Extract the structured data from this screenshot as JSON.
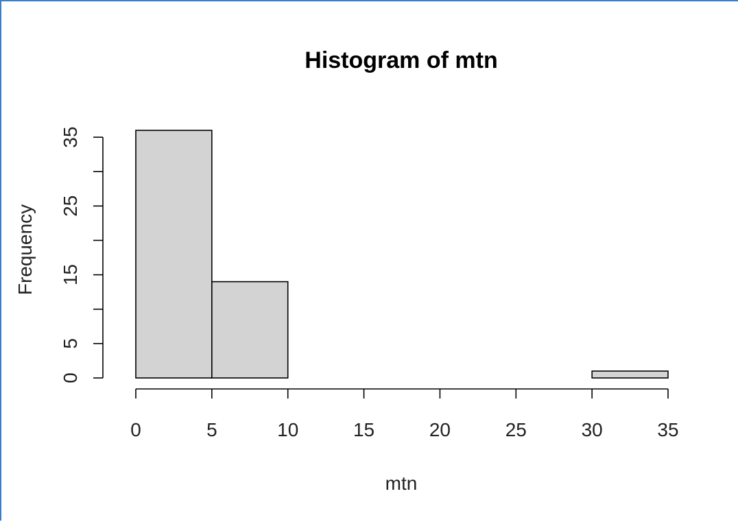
{
  "chart_data": {
    "type": "bar",
    "title": "Histogram of mtn",
    "xlabel": "mtn",
    "ylabel": "Frequency",
    "bins": [
      {
        "x0": 0,
        "x1": 5,
        "count": 36
      },
      {
        "x0": 5,
        "x1": 10,
        "count": 14
      },
      {
        "x0": 10,
        "x1": 15,
        "count": 0
      },
      {
        "x0": 15,
        "x1": 20,
        "count": 0
      },
      {
        "x0": 20,
        "x1": 25,
        "count": 0
      },
      {
        "x0": 25,
        "x1": 30,
        "count": 0
      },
      {
        "x0": 30,
        "x1": 35,
        "count": 1
      }
    ],
    "xlim": [
      0,
      35
    ],
    "ylim": [
      0,
      36
    ],
    "xticks": [
      0,
      5,
      10,
      15,
      20,
      25,
      30,
      35
    ],
    "yticks_labeled": [
      0,
      5,
      15,
      25,
      35
    ],
    "yticks": [
      0,
      5,
      10,
      15,
      20,
      25,
      30,
      35
    ],
    "bar_fill": "#d3d3d3",
    "bar_stroke": "#000000",
    "grid": false,
    "legend": "none"
  }
}
